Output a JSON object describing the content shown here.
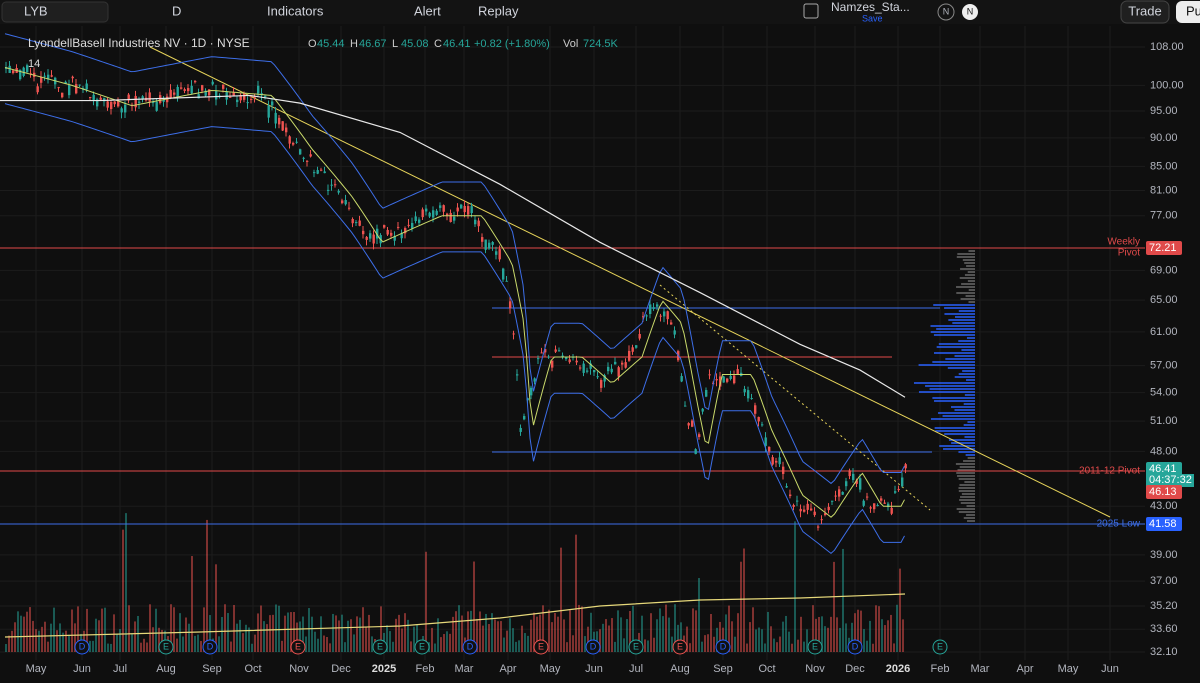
{
  "toolbar": {
    "symbol": "LYB",
    "interval": "D",
    "indicators": "Indicators",
    "alert": "Alert",
    "replay": "Replay",
    "layout_name": "Namzes_Sta...",
    "save": "Save",
    "avatar_1": "N",
    "avatar_2": "N",
    "trade": "Trade",
    "publish": "Pu"
  },
  "legend": {
    "title": "LyondellBasell Industries NV · 1D · NYSE",
    "ohlc": [
      {
        "label": "O",
        "value": "45.44"
      },
      {
        "label": "H",
        "value": "46.67"
      },
      {
        "label": "L",
        "value": "45.08"
      },
      {
        "label": "C",
        "value": "46.41"
      }
    ],
    "change": "+0.82 (+1.80%)",
    "volume_label": "Vol",
    "volume": "724.5K",
    "indicator_length": "14"
  },
  "price_axis": [
    "108.00",
    "100.00",
    "95.00",
    "90.00",
    "85.00",
    "81.00",
    "77.00",
    "69.00",
    "65.00",
    "61.00",
    "57.00",
    "54.00",
    "51.00",
    "48.00",
    "43.00",
    "39.00",
    "37.00",
    "35.20",
    "33.60",
    "32.10"
  ],
  "price_tags": {
    "weekly_pivot": "72.21",
    "last": "46.41",
    "countdown": "04:37:32",
    "pivot_2011": "46.13",
    "low_2025": "41.58"
  },
  "annotations": {
    "weekly": "Weekly",
    "pivot": "Pivot",
    "pivot_2011": "2011-12 Pivot",
    "low_2025": "2025 Low"
  },
  "time_axis": [
    "May",
    "Jun",
    "Jul",
    "Aug",
    "Sep",
    "Oct",
    "Nov",
    "Dec",
    "2025",
    "Feb",
    "Mar",
    "Apr",
    "May",
    "Jun",
    "Jul",
    "Aug",
    "Sep",
    "Oct",
    "Nov",
    "Dec",
    "2026",
    "Feb",
    "Mar",
    "Apr",
    "May",
    "Jun"
  ],
  "event_markers": [
    "D",
    "E",
    "D",
    "E",
    "E",
    "D",
    "E",
    "D",
    "E",
    "E",
    "D",
    "E",
    "D",
    "E",
    "E"
  ]
}
